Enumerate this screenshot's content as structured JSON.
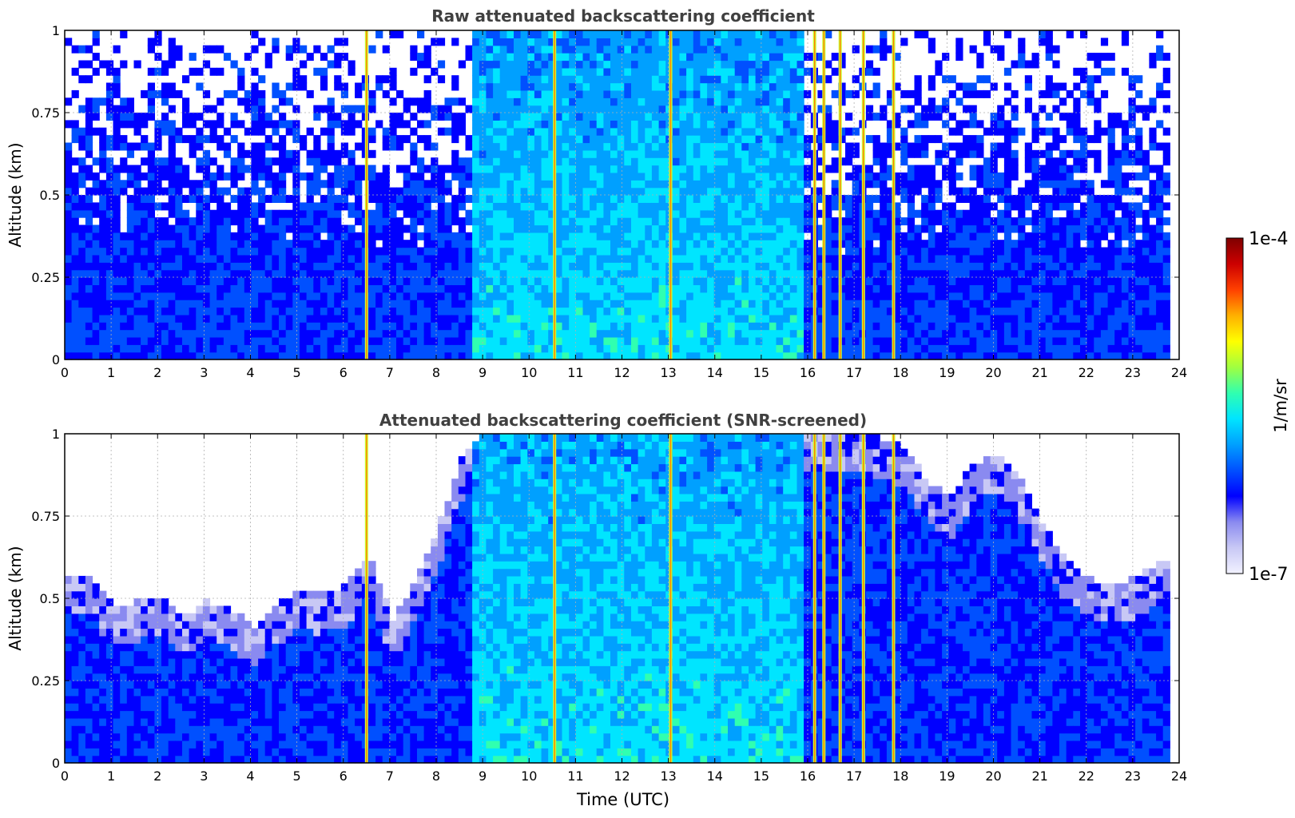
{
  "figure": {
    "xlabel": "Time (UTC)"
  },
  "colorbar": {
    "label": "1/m/sr",
    "min_label": "1e-7",
    "max_label": "1e-4",
    "colormap": [
      "#f2f2ff",
      "#c8c8f5",
      "#8a8af0",
      "#0000ff",
      "#0050ff",
      "#00a0ff",
      "#00e5ff",
      "#30ffb0",
      "#a0ff40",
      "#ffff00",
      "#ffb000",
      "#ff4000",
      "#cc0000",
      "#7f0000"
    ]
  },
  "chart_data": [
    {
      "type": "heatmap",
      "title": "Raw attenuated backscattering coefficient",
      "xlabel": "",
      "ylabel": "Altitude (km)",
      "xlim": [
        0,
        24
      ],
      "ylim": [
        0,
        1
      ],
      "x_ticks": [
        "0",
        "1",
        "2",
        "3",
        "4",
        "5",
        "6",
        "7",
        "8",
        "9",
        "10",
        "11",
        "12",
        "13",
        "14",
        "15",
        "16",
        "17",
        "18",
        "19",
        "20",
        "21",
        "22",
        "23",
        "24"
      ],
      "y_ticks": [
        "0",
        "0.25",
        "0.5",
        "0.75",
        "1"
      ],
      "grid": true,
      "strong_return_times_utc": [
        6.5,
        10.55,
        13.05,
        16.15,
        16.35,
        16.7,
        17.2,
        17.85
      ],
      "enhanced_period_utc": [
        8.7,
        15.9
      ]
    },
    {
      "type": "heatmap",
      "title": "Attenuated backscattering coefficient (SNR-screened)",
      "xlabel": "Time (UTC)",
      "ylabel": "Altitude (km)",
      "xlim": [
        0,
        24
      ],
      "ylim": [
        0,
        1
      ],
      "x_ticks": [
        "0",
        "1",
        "2",
        "3",
        "4",
        "5",
        "6",
        "7",
        "8",
        "9",
        "10",
        "11",
        "12",
        "13",
        "14",
        "15",
        "16",
        "17",
        "18",
        "19",
        "20",
        "21",
        "22",
        "23",
        "24"
      ],
      "y_ticks": [
        "0",
        "0.25",
        "0.5",
        "0.75",
        "1"
      ],
      "grid": true,
      "valid_data_top_km": {
        "time_utc": [
          0,
          0.5,
          1,
          1.5,
          2,
          2.5,
          3,
          3.5,
          4,
          4.5,
          5,
          5.5,
          6,
          6.5,
          7,
          7.5,
          8,
          8.5,
          9,
          10,
          11,
          12,
          13,
          14,
          15,
          16,
          17,
          18,
          18.5,
          19,
          19.5,
          20,
          20.5,
          21,
          21.5,
          22,
          22.5,
          23,
          23.5,
          23.8
        ],
        "altitude_km": [
          0.56,
          0.55,
          0.46,
          0.48,
          0.5,
          0.44,
          0.48,
          0.46,
          0.4,
          0.47,
          0.52,
          0.5,
          0.53,
          0.62,
          0.42,
          0.55,
          0.72,
          0.92,
          1,
          1,
          1,
          1,
          1,
          1,
          1,
          1,
          1,
          0.95,
          0.85,
          0.79,
          0.9,
          0.93,
          0.85,
          0.72,
          0.6,
          0.55,
          0.53,
          0.55,
          0.6,
          0.62
        ]
      },
      "strong_return_times_utc": [
        6.5,
        10.55,
        13.05,
        16.15,
        16.35,
        16.7,
        17.2,
        17.85
      ],
      "enhanced_period_utc": [
        8.7,
        15.9
      ]
    }
  ]
}
